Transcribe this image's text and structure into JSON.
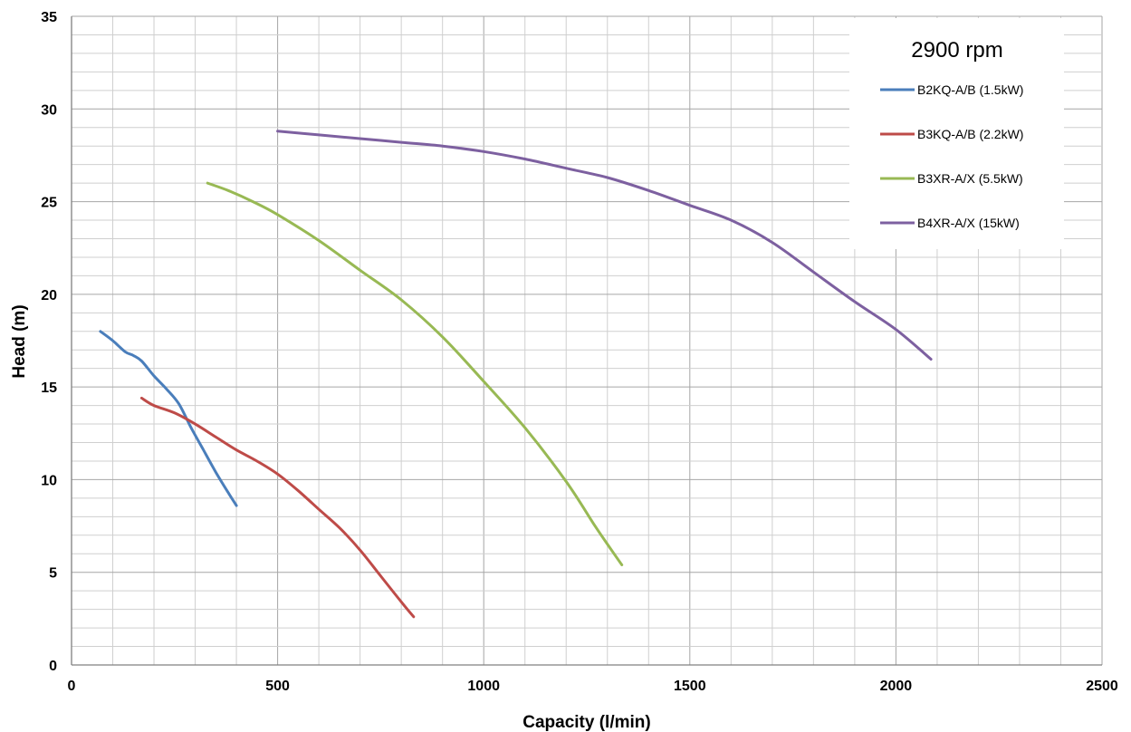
{
  "chart_data": {
    "type": "line",
    "title": "2900 rpm",
    "xlabel": "Capacity (l/min)",
    "ylabel": "Head (m)",
    "xlim": [
      0,
      2500
    ],
    "ylim": [
      0,
      35
    ],
    "xticks": [
      0,
      500,
      1000,
      1500,
      2000,
      2500
    ],
    "yticks": [
      0,
      5,
      10,
      15,
      20,
      25,
      30,
      35
    ],
    "x_minor_step": 100,
    "y_minor_step": 1,
    "grid": true,
    "legend_position": "top-right",
    "series": [
      {
        "name": "B2KQ-A/B (1.5kW)",
        "color": "#4a7ebb",
        "points": [
          [
            70,
            18.0
          ],
          [
            100,
            17.5
          ],
          [
            130,
            16.9
          ],
          [
            150,
            16.7
          ],
          [
            170,
            16.4
          ],
          [
            200,
            15.6
          ],
          [
            230,
            14.9
          ],
          [
            260,
            14.1
          ],
          [
            290,
            12.8
          ],
          [
            320,
            11.6
          ],
          [
            350,
            10.4
          ],
          [
            380,
            9.3
          ],
          [
            400,
            8.6
          ]
        ]
      },
      {
        "name": "B3KQ-A/B (2.2kW)",
        "color": "#be4b48",
        "points": [
          [
            170,
            14.4
          ],
          [
            200,
            14.0
          ],
          [
            250,
            13.6
          ],
          [
            300,
            13.0
          ],
          [
            350,
            12.3
          ],
          [
            400,
            11.6
          ],
          [
            450,
            11.0
          ],
          [
            500,
            10.3
          ],
          [
            550,
            9.4
          ],
          [
            600,
            8.4
          ],
          [
            650,
            7.4
          ],
          [
            700,
            6.2
          ],
          [
            750,
            4.8
          ],
          [
            800,
            3.4
          ],
          [
            830,
            2.6
          ]
        ]
      },
      {
        "name": "B3XR-A/X (5.5kW)",
        "color": "#98b954",
        "points": [
          [
            330,
            26.0
          ],
          [
            380,
            25.6
          ],
          [
            440,
            25.0
          ],
          [
            500,
            24.3
          ],
          [
            600,
            22.9
          ],
          [
            700,
            21.3
          ],
          [
            800,
            19.7
          ],
          [
            900,
            17.7
          ],
          [
            1000,
            15.3
          ],
          [
            1100,
            12.8
          ],
          [
            1200,
            9.9
          ],
          [
            1270,
            7.5
          ],
          [
            1310,
            6.2
          ],
          [
            1335,
            5.4
          ]
        ]
      },
      {
        "name": "B4XR-A/X (15kW)",
        "color": "#7d60a0",
        "points": [
          [
            500,
            28.8
          ],
          [
            600,
            28.6
          ],
          [
            700,
            28.4
          ],
          [
            800,
            28.2
          ],
          [
            900,
            28.0
          ],
          [
            1000,
            27.7
          ],
          [
            1100,
            27.3
          ],
          [
            1200,
            26.8
          ],
          [
            1300,
            26.3
          ],
          [
            1400,
            25.6
          ],
          [
            1500,
            24.8
          ],
          [
            1600,
            24.0
          ],
          [
            1700,
            22.8
          ],
          [
            1800,
            21.2
          ],
          [
            1900,
            19.6
          ],
          [
            2000,
            18.1
          ],
          [
            2085,
            16.5
          ]
        ]
      }
    ]
  }
}
